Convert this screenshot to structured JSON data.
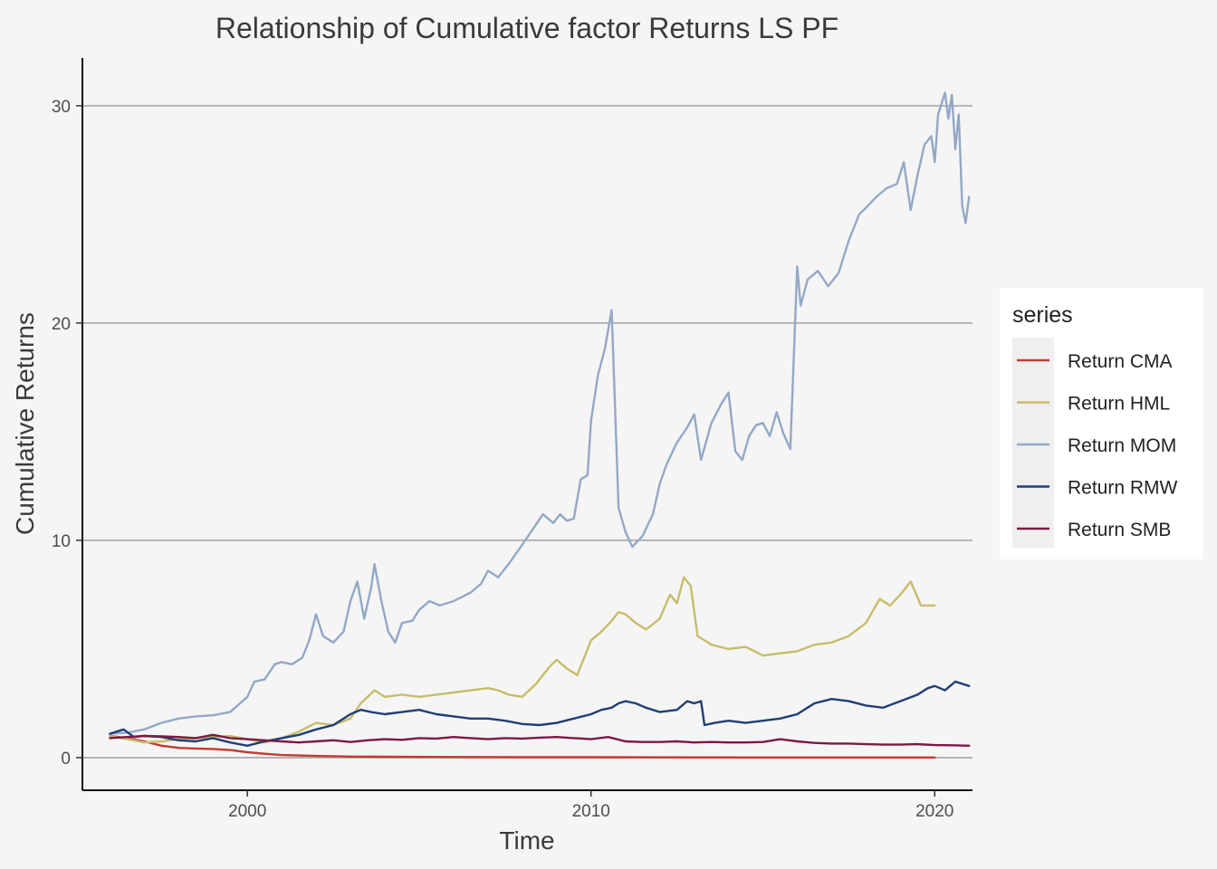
{
  "chart_data": {
    "type": "line",
    "title": "Relationship of Cumulative factor Returns LS PF",
    "xlabel": "Time",
    "ylabel": "Cumulative Returns",
    "xlim": [
      1995.2,
      2021.1
    ],
    "ylim": [
      -1.5,
      32.2
    ],
    "x_ticks": [
      2000,
      2010,
      2020
    ],
    "y_ticks": [
      0,
      10,
      20,
      30
    ],
    "grid": "horizontal-major",
    "legend": {
      "title": "series",
      "position": "right"
    },
    "series": [
      {
        "name": "Return CMA",
        "color": "#c23b33",
        "points": [
          [
            1996.0,
            1.0
          ],
          [
            1996.5,
            0.9
          ],
          [
            1997.0,
            0.75
          ],
          [
            1997.5,
            0.55
          ],
          [
            1998.0,
            0.45
          ],
          [
            1998.5,
            0.42
          ],
          [
            1999.0,
            0.4
          ],
          [
            1999.5,
            0.35
          ],
          [
            2000.0,
            0.25
          ],
          [
            2000.5,
            0.18
          ],
          [
            2001.0,
            0.12
          ],
          [
            2001.5,
            0.1
          ],
          [
            2002.0,
            0.08
          ],
          [
            2003.0,
            0.05
          ],
          [
            2004.0,
            0.04
          ],
          [
            2006.0,
            0.03
          ],
          [
            2008.0,
            0.02
          ],
          [
            2010.0,
            0.02
          ],
          [
            2015.0,
            0.01
          ],
          [
            2020.0,
            0.01
          ]
        ]
      },
      {
        "name": "Return HML",
        "color": "#c8bc6b",
        "points": [
          [
            1996.0,
            1.0
          ],
          [
            1996.5,
            0.85
          ],
          [
            1997.0,
            0.7
          ],
          [
            1997.5,
            0.75
          ],
          [
            1998.0,
            0.85
          ],
          [
            1998.5,
            0.9
          ],
          [
            1999.0,
            0.95
          ],
          [
            1999.5,
            1.0
          ],
          [
            2000.0,
            0.85
          ],
          [
            2000.5,
            0.7
          ],
          [
            2001.0,
            0.9
          ],
          [
            2001.5,
            1.2
          ],
          [
            2002.0,
            1.6
          ],
          [
            2002.5,
            1.5
          ],
          [
            2003.0,
            1.8
          ],
          [
            2003.3,
            2.5
          ],
          [
            2003.7,
            3.1
          ],
          [
            2004.0,
            2.8
          ],
          [
            2004.5,
            2.9
          ],
          [
            2005.0,
            2.8
          ],
          [
            2005.5,
            2.9
          ],
          [
            2006.0,
            3.0
          ],
          [
            2006.5,
            3.1
          ],
          [
            2007.0,
            3.2
          ],
          [
            2007.3,
            3.1
          ],
          [
            2007.6,
            2.9
          ],
          [
            2008.0,
            2.8
          ],
          [
            2008.4,
            3.4
          ],
          [
            2008.8,
            4.2
          ],
          [
            2009.0,
            4.5
          ],
          [
            2009.3,
            4.1
          ],
          [
            2009.6,
            3.8
          ],
          [
            2009.8,
            4.6
          ],
          [
            2010.0,
            5.4
          ],
          [
            2010.3,
            5.8
          ],
          [
            2010.6,
            6.3
          ],
          [
            2010.8,
            6.7
          ],
          [
            2011.0,
            6.6
          ],
          [
            2011.3,
            6.2
          ],
          [
            2011.6,
            5.9
          ],
          [
            2012.0,
            6.4
          ],
          [
            2012.3,
            7.5
          ],
          [
            2012.5,
            7.1
          ],
          [
            2012.7,
            8.3
          ],
          [
            2012.9,
            7.9
          ],
          [
            2013.1,
            5.6
          ],
          [
            2013.5,
            5.2
          ],
          [
            2014.0,
            5.0
          ],
          [
            2014.5,
            5.1
          ],
          [
            2015.0,
            4.7
          ],
          [
            2015.5,
            4.8
          ],
          [
            2016.0,
            4.9
          ],
          [
            2016.5,
            5.2
          ],
          [
            2017.0,
            5.3
          ],
          [
            2017.5,
            5.6
          ],
          [
            2018.0,
            6.2
          ],
          [
            2018.4,
            7.3
          ],
          [
            2018.7,
            7.0
          ],
          [
            2019.0,
            7.5
          ],
          [
            2019.3,
            8.1
          ],
          [
            2019.6,
            7.0
          ],
          [
            2020.0,
            7.0
          ]
        ]
      },
      {
        "name": "Return MOM",
        "color": "#93a8c7",
        "points": [
          [
            1996.0,
            1.1
          ],
          [
            1996.5,
            1.15
          ],
          [
            1997.0,
            1.3
          ],
          [
            1997.5,
            1.6
          ],
          [
            1998.0,
            1.8
          ],
          [
            1998.5,
            1.9
          ],
          [
            1999.0,
            1.95
          ],
          [
            1999.5,
            2.1
          ],
          [
            2000.0,
            2.8
          ],
          [
            2000.2,
            3.5
          ],
          [
            2000.5,
            3.6
          ],
          [
            2000.8,
            4.3
          ],
          [
            2001.0,
            4.4
          ],
          [
            2001.3,
            4.3
          ],
          [
            2001.6,
            4.6
          ],
          [
            2001.8,
            5.4
          ],
          [
            2002.0,
            6.6
          ],
          [
            2002.2,
            5.6
          ],
          [
            2002.5,
            5.3
          ],
          [
            2002.8,
            5.8
          ],
          [
            2003.0,
            7.2
          ],
          [
            2003.2,
            8.1
          ],
          [
            2003.4,
            6.4
          ],
          [
            2003.6,
            7.8
          ],
          [
            2003.7,
            8.9
          ],
          [
            2003.9,
            7.2
          ],
          [
            2004.1,
            5.8
          ],
          [
            2004.3,
            5.3
          ],
          [
            2004.5,
            6.2
          ],
          [
            2004.8,
            6.3
          ],
          [
            2005.0,
            6.8
          ],
          [
            2005.3,
            7.2
          ],
          [
            2005.6,
            7.0
          ],
          [
            2006.0,
            7.2
          ],
          [
            2006.5,
            7.6
          ],
          [
            2006.8,
            8.0
          ],
          [
            2007.0,
            8.6
          ],
          [
            2007.3,
            8.3
          ],
          [
            2007.6,
            8.9
          ],
          [
            2008.0,
            9.8
          ],
          [
            2008.3,
            10.5
          ],
          [
            2008.6,
            11.2
          ],
          [
            2008.9,
            10.8
          ],
          [
            2009.1,
            11.2
          ],
          [
            2009.3,
            10.9
          ],
          [
            2009.5,
            11.0
          ],
          [
            2009.7,
            12.8
          ],
          [
            2009.9,
            13.0
          ],
          [
            2010.0,
            15.5
          ],
          [
            2010.2,
            17.6
          ],
          [
            2010.4,
            18.8
          ],
          [
            2010.6,
            20.6
          ],
          [
            2010.8,
            11.5
          ],
          [
            2011.0,
            10.4
          ],
          [
            2011.2,
            9.7
          ],
          [
            2011.5,
            10.2
          ],
          [
            2011.8,
            11.2
          ],
          [
            2012.0,
            12.6
          ],
          [
            2012.2,
            13.5
          ],
          [
            2012.5,
            14.5
          ],
          [
            2012.8,
            15.2
          ],
          [
            2013.0,
            15.8
          ],
          [
            2013.2,
            13.7
          ],
          [
            2013.5,
            15.4
          ],
          [
            2013.8,
            16.3
          ],
          [
            2014.0,
            16.8
          ],
          [
            2014.2,
            14.1
          ],
          [
            2014.4,
            13.7
          ],
          [
            2014.6,
            14.8
          ],
          [
            2014.8,
            15.3
          ],
          [
            2015.0,
            15.4
          ],
          [
            2015.2,
            14.8
          ],
          [
            2015.4,
            15.9
          ],
          [
            2015.6,
            14.9
          ],
          [
            2015.8,
            14.2
          ],
          [
            2016.0,
            22.6
          ],
          [
            2016.1,
            20.8
          ],
          [
            2016.3,
            22.0
          ],
          [
            2016.6,
            22.4
          ],
          [
            2016.9,
            21.7
          ],
          [
            2017.2,
            22.3
          ],
          [
            2017.5,
            23.8
          ],
          [
            2017.8,
            25.0
          ],
          [
            2018.0,
            25.3
          ],
          [
            2018.3,
            25.8
          ],
          [
            2018.6,
            26.2
          ],
          [
            2018.9,
            26.4
          ],
          [
            2019.1,
            27.4
          ],
          [
            2019.3,
            25.2
          ],
          [
            2019.5,
            26.8
          ],
          [
            2019.7,
            28.2
          ],
          [
            2019.9,
            28.6
          ],
          [
            2020.0,
            27.4
          ],
          [
            2020.1,
            29.6
          ],
          [
            2020.3,
            30.6
          ],
          [
            2020.4,
            29.4
          ],
          [
            2020.5,
            30.5
          ],
          [
            2020.6,
            28.0
          ],
          [
            2020.7,
            29.6
          ],
          [
            2020.8,
            25.4
          ],
          [
            2020.9,
            24.6
          ],
          [
            2021.0,
            25.8
          ]
        ]
      },
      {
        "name": "Return RMW",
        "color": "#1f3f74",
        "points": [
          [
            1996.0,
            1.1
          ],
          [
            1996.4,
            1.3
          ],
          [
            1996.7,
            0.95
          ],
          [
            1997.0,
            1.0
          ],
          [
            1997.5,
            0.95
          ],
          [
            1998.0,
            0.8
          ],
          [
            1998.5,
            0.75
          ],
          [
            1999.0,
            0.9
          ],
          [
            1999.5,
            0.7
          ],
          [
            2000.0,
            0.55
          ],
          [
            2000.5,
            0.75
          ],
          [
            2001.0,
            0.9
          ],
          [
            2001.5,
            1.05
          ],
          [
            2002.0,
            1.3
          ],
          [
            2002.5,
            1.5
          ],
          [
            2003.0,
            2.0
          ],
          [
            2003.3,
            2.2
          ],
          [
            2003.6,
            2.1
          ],
          [
            2004.0,
            2.0
          ],
          [
            2004.5,
            2.1
          ],
          [
            2005.0,
            2.2
          ],
          [
            2005.5,
            2.0
          ],
          [
            2006.0,
            1.9
          ],
          [
            2006.5,
            1.8
          ],
          [
            2007.0,
            1.8
          ],
          [
            2007.5,
            1.7
          ],
          [
            2008.0,
            1.55
          ],
          [
            2008.5,
            1.5
          ],
          [
            2009.0,
            1.6
          ],
          [
            2009.5,
            1.8
          ],
          [
            2010.0,
            2.0
          ],
          [
            2010.3,
            2.2
          ],
          [
            2010.6,
            2.3
          ],
          [
            2010.8,
            2.5
          ],
          [
            2011.0,
            2.6
          ],
          [
            2011.3,
            2.5
          ],
          [
            2011.6,
            2.3
          ],
          [
            2012.0,
            2.1
          ],
          [
            2012.5,
            2.2
          ],
          [
            2012.8,
            2.6
          ],
          [
            2013.0,
            2.5
          ],
          [
            2013.2,
            2.6
          ],
          [
            2013.3,
            1.5
          ],
          [
            2013.6,
            1.6
          ],
          [
            2014.0,
            1.7
          ],
          [
            2014.5,
            1.6
          ],
          [
            2015.0,
            1.7
          ],
          [
            2015.5,
            1.8
          ],
          [
            2016.0,
            2.0
          ],
          [
            2016.5,
            2.5
          ],
          [
            2017.0,
            2.7
          ],
          [
            2017.5,
            2.6
          ],
          [
            2018.0,
            2.4
          ],
          [
            2018.5,
            2.3
          ],
          [
            2019.0,
            2.6
          ],
          [
            2019.5,
            2.9
          ],
          [
            2019.8,
            3.2
          ],
          [
            2020.0,
            3.3
          ],
          [
            2020.3,
            3.1
          ],
          [
            2020.6,
            3.5
          ],
          [
            2021.0,
            3.3
          ]
        ]
      },
      {
        "name": "Return SMB",
        "color": "#7b1a44",
        "points": [
          [
            1996.0,
            0.9
          ],
          [
            1996.5,
            0.95
          ],
          [
            1997.0,
            1.0
          ],
          [
            1997.5,
            0.98
          ],
          [
            1998.0,
            0.95
          ],
          [
            1998.5,
            0.9
          ],
          [
            1999.0,
            1.05
          ],
          [
            1999.5,
            0.9
          ],
          [
            2000.0,
            0.85
          ],
          [
            2000.5,
            0.8
          ],
          [
            2001.0,
            0.75
          ],
          [
            2001.5,
            0.7
          ],
          [
            2002.0,
            0.75
          ],
          [
            2002.5,
            0.8
          ],
          [
            2003.0,
            0.72
          ],
          [
            2003.5,
            0.8
          ],
          [
            2004.0,
            0.85
          ],
          [
            2004.5,
            0.82
          ],
          [
            2005.0,
            0.9
          ],
          [
            2005.5,
            0.88
          ],
          [
            2006.0,
            0.95
          ],
          [
            2006.5,
            0.9
          ],
          [
            2007.0,
            0.85
          ],
          [
            2007.5,
            0.9
          ],
          [
            2008.0,
            0.88
          ],
          [
            2008.5,
            0.92
          ],
          [
            2009.0,
            0.95
          ],
          [
            2009.5,
            0.9
          ],
          [
            2010.0,
            0.85
          ],
          [
            2010.5,
            0.95
          ],
          [
            2011.0,
            0.75
          ],
          [
            2011.5,
            0.72
          ],
          [
            2012.0,
            0.72
          ],
          [
            2012.5,
            0.75
          ],
          [
            2013.0,
            0.7
          ],
          [
            2013.5,
            0.72
          ],
          [
            2014.0,
            0.7
          ],
          [
            2014.5,
            0.7
          ],
          [
            2015.0,
            0.72
          ],
          [
            2015.5,
            0.85
          ],
          [
            2016.0,
            0.75
          ],
          [
            2016.5,
            0.68
          ],
          [
            2017.0,
            0.65
          ],
          [
            2017.5,
            0.65
          ],
          [
            2018.0,
            0.62
          ],
          [
            2018.5,
            0.6
          ],
          [
            2019.0,
            0.6
          ],
          [
            2019.5,
            0.62
          ],
          [
            2020.0,
            0.58
          ],
          [
            2020.5,
            0.57
          ],
          [
            2021.0,
            0.55
          ]
        ]
      }
    ]
  }
}
